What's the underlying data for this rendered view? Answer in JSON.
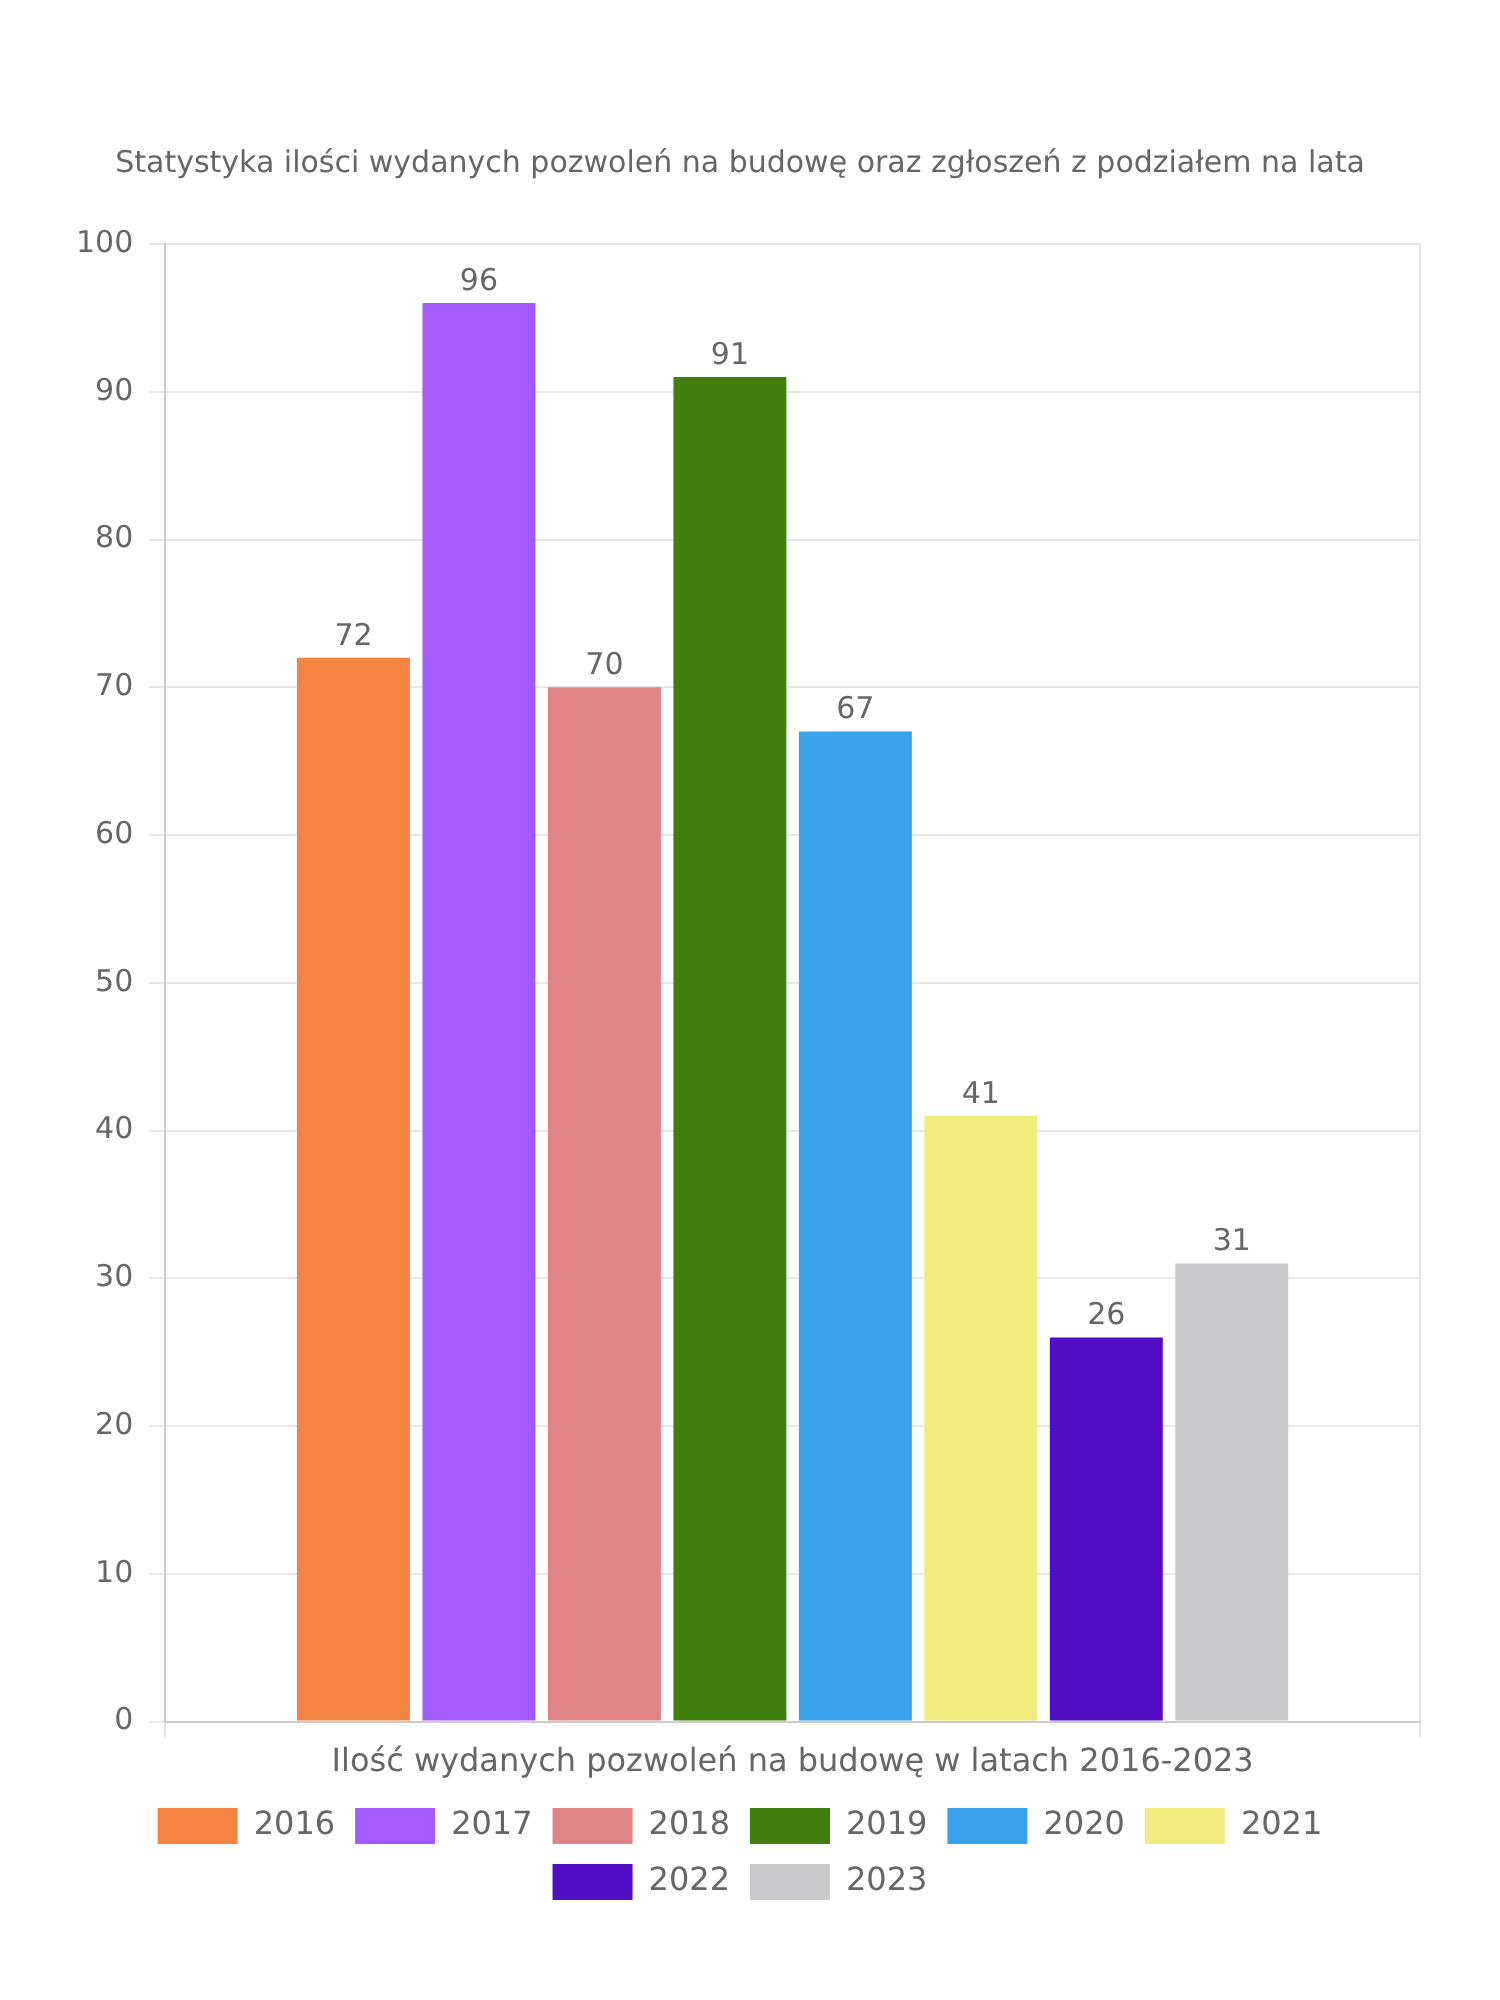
{
  "chart_data": {
    "type": "bar",
    "title": "Statystyka ilości wydanych pozwoleń na budowę oraz zgłoszeń z podziałem na lata",
    "categories": [
      "Ilość wydanych pozwoleń na budowę w latach 2016-2023"
    ],
    "series": [
      {
        "name": "2016",
        "color": "#f58442",
        "values": [
          72
        ]
      },
      {
        "name": "2017",
        "color": "#a25bff",
        "values": [
          96
        ]
      },
      {
        "name": "2018",
        "color": "#e08385",
        "values": [
          70
        ]
      },
      {
        "name": "2019",
        "color": "#417f0e",
        "values": [
          91
        ]
      },
      {
        "name": "2020",
        "color": "#38a2ea",
        "values": [
          67
        ]
      },
      {
        "name": "2021",
        "color": "#f0ec7e",
        "values": [
          41
        ]
      },
      {
        "name": "2022",
        "color": "#520cc4",
        "values": [
          26
        ]
      },
      {
        "name": "2023",
        "color": "#c9c9cc",
        "values": [
          31
        ]
      }
    ],
    "ylim": [
      0,
      100
    ],
    "yticks": [
      0,
      10,
      20,
      30,
      40,
      50,
      60,
      70,
      80,
      90,
      100
    ],
    "grid": true,
    "legend": "bottom",
    "data_labels": true
  }
}
